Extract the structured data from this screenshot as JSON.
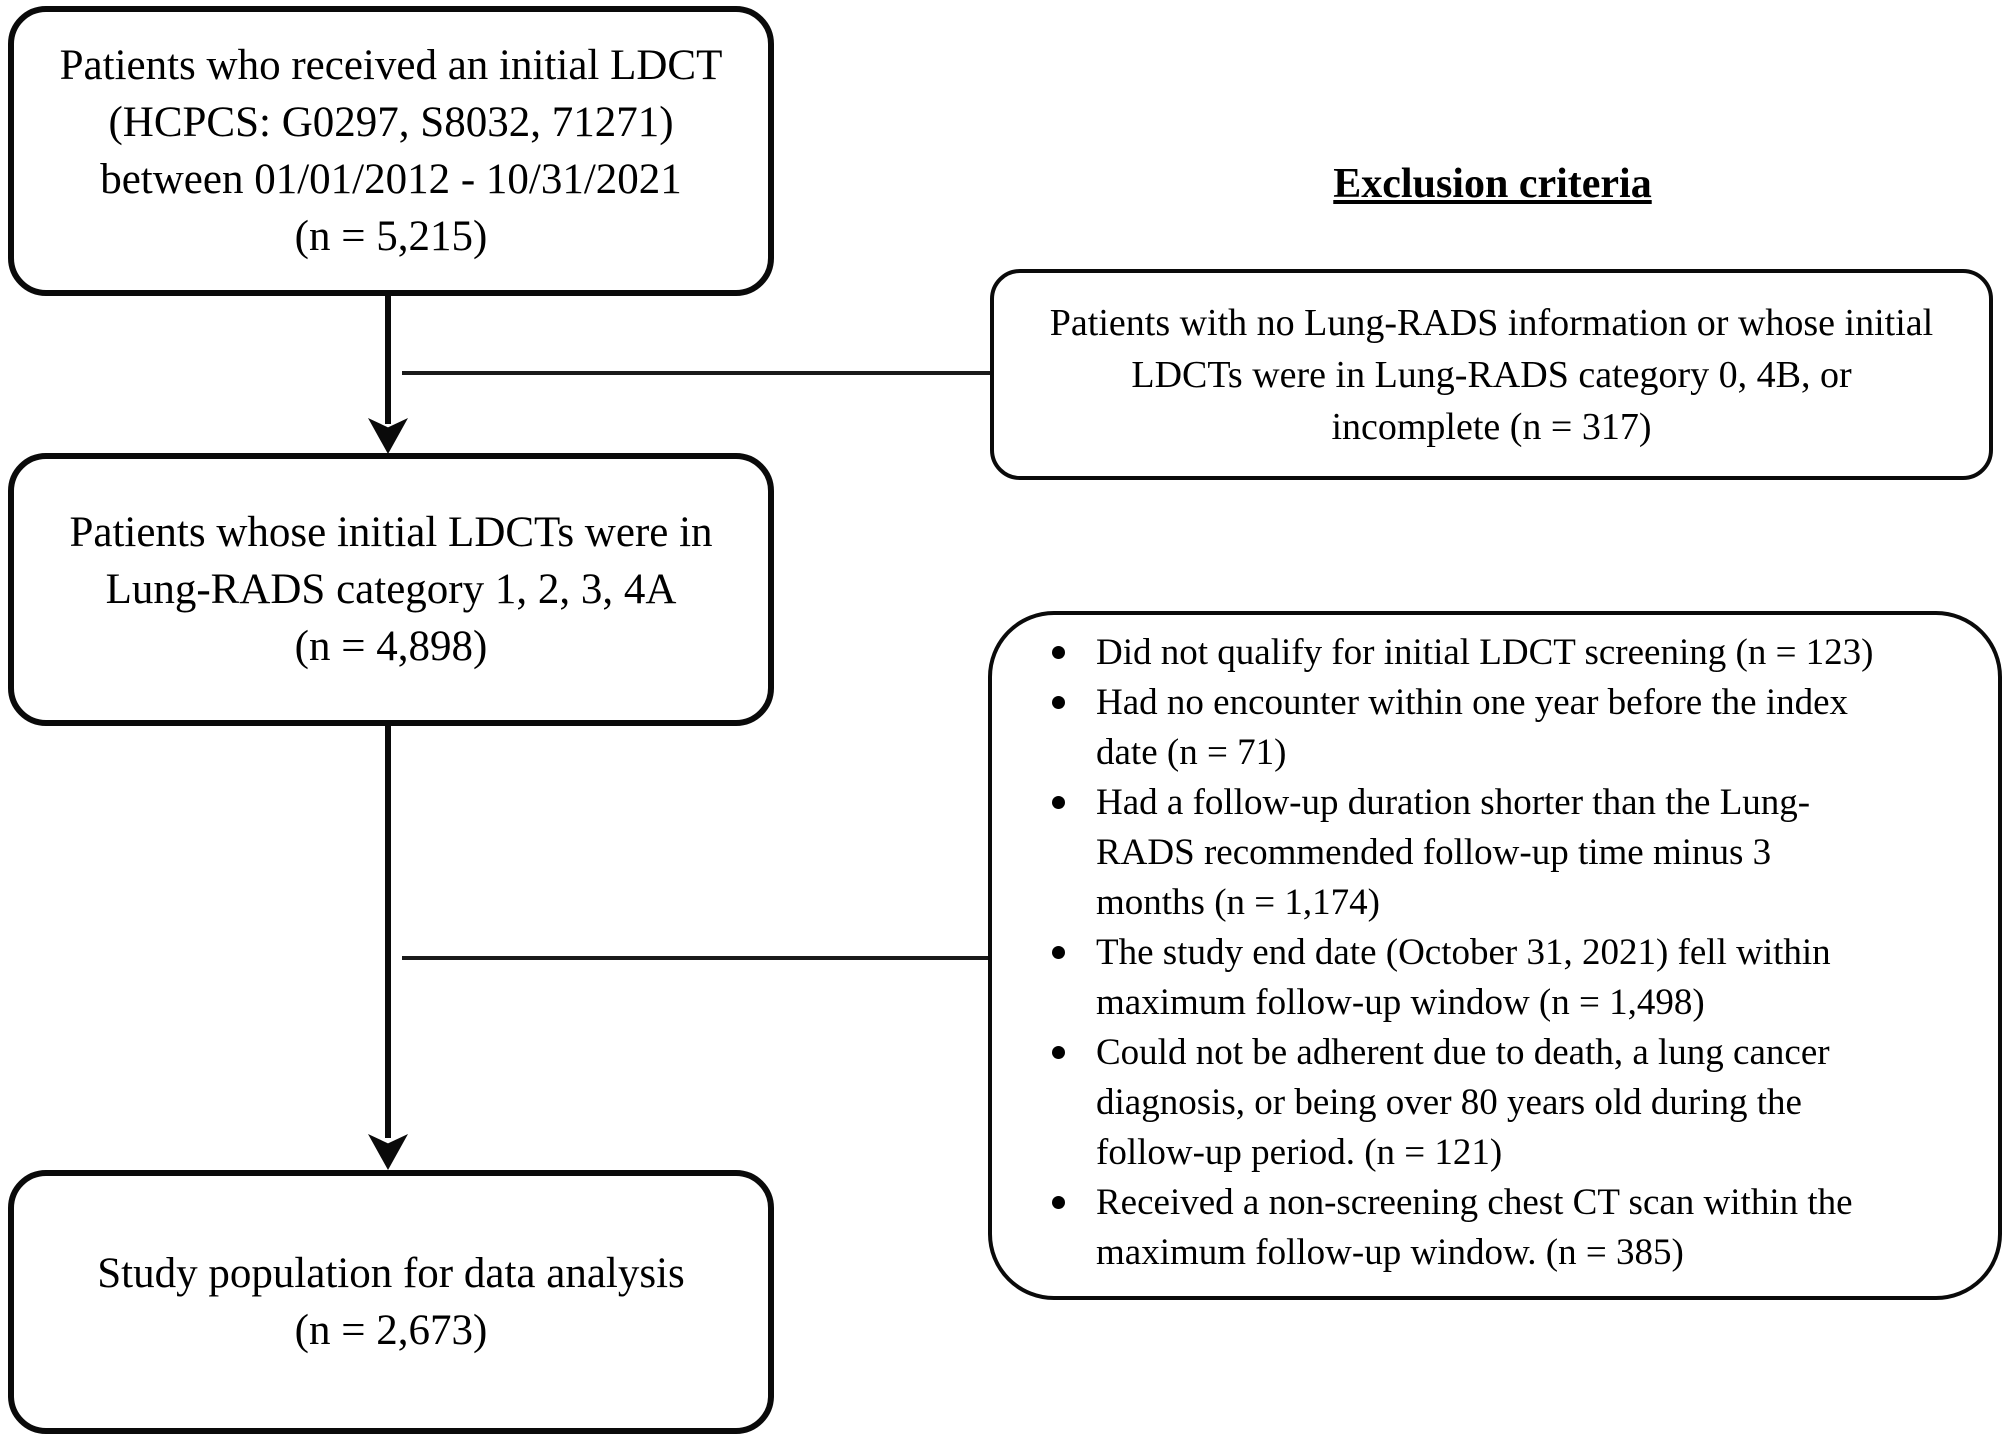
{
  "page": {
    "background_color": "#ffffff",
    "ink_color": "#000000"
  },
  "flow": {
    "boxes": [
      {
        "id": "initial-ldct",
        "text": "Patients who received an initial LDCT\n(HCPCS: G0297, S8032, 71271)\nbetween 01/01/2012 - 10/31/2021\n(n = 5,215)",
        "n": "5,215"
      },
      {
        "id": "lungrads-1234a",
        "text": "Patients whose initial LDCTs were in\nLung-RADS category 1, 2, 3, 4A\n(n = 4,898)",
        "n": "4,898"
      },
      {
        "id": "study-population",
        "text": "Study population for data analysis\n(n = 2,673)",
        "n": "2,673"
      }
    ]
  },
  "exclusion": {
    "heading": "Exclusion criteria",
    "box1": {
      "text": "Patients with no Lung-RADS information or whose initial\nLDCTs were in Lung-RADS category 0, 4B, or\nincomplete (n = 317)",
      "n": "317"
    },
    "box2": {
      "items": [
        "Did not qualify for initial LDCT screening (n = 123)",
        "Had no encounter within one year before the index\ndate (n = 71)",
        "Had a follow-up duration shorter than the Lung-\nRADS recommended follow-up time minus 3\nmonths (n = 1,174)",
        "The study end date (October 31, 2021) fell within\nmaximum follow-up window (n = 1,498)",
        "Could not be adherent due to death, a lung cancer\ndiagnosis, or being over 80 years old during the\nfollow-up period. (n = 121)",
        "Received a non-screening chest CT scan within the\nmaximum follow-up window. (n = 385)"
      ]
    }
  }
}
